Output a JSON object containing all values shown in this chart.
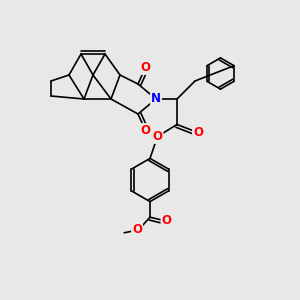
{
  "bg_color": "#e8e8e8",
  "bond_color": "#000000",
  "bond_width": 1.2,
  "atom_colors": {
    "O": "#ff0000",
    "N": "#0000ff",
    "C": "#000000"
  },
  "figsize": [
    3.0,
    3.0
  ],
  "dpi": 100
}
